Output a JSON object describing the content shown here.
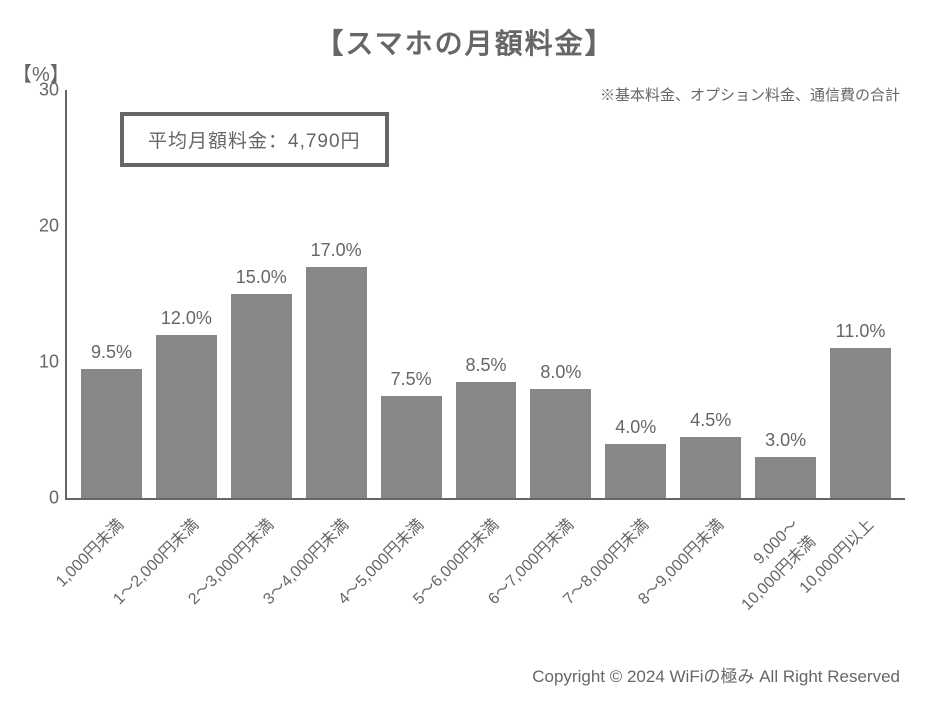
{
  "chart": {
    "type": "bar",
    "title": "【スマホの月額料金】",
    "y_unit_label": "【%】",
    "subtitle": "※基本料金、オプション料金、通信費の合計",
    "annotation": "平均月額料金：4,790円",
    "ylim": [
      0,
      30
    ],
    "yticks": [
      0,
      10,
      20,
      30
    ],
    "ytick_labels": [
      "0",
      "10",
      "20",
      "30"
    ],
    "bar_color": "#878787",
    "text_color": "#666666",
    "background_color": "#ffffff",
    "axis_color": "#666666",
    "title_fontsize": 28,
    "label_fontsize": 18,
    "tick_fontsize": 16,
    "annotation_border_width": 4,
    "categories": [
      "1,000円未満",
      "1～2,000円未満",
      "2～3,000円未満",
      "3～4,000円未満",
      "4～5,000円未満",
      "5～6,000円未満",
      "6～7,000円未満",
      "7～8,000円未満",
      "8～9,000円未満",
      "9,000～\n10,000円未満",
      "10,000円以上"
    ],
    "values": [
      9.5,
      12.0,
      15.0,
      17.0,
      7.5,
      8.5,
      8.0,
      4.0,
      4.5,
      3.0,
      11.0
    ],
    "value_labels": [
      "9.5%",
      "12.0%",
      "15.0%",
      "17.0%",
      "7.5%",
      "8.5%",
      "8.0%",
      "4.0%",
      "4.5%",
      "3.0%",
      "11.0%"
    ]
  },
  "copyright": "Copyright © 2024 WiFiの極み All Right Reserved"
}
